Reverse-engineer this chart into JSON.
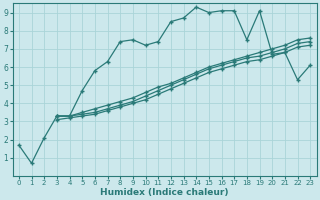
{
  "xlabel": "Humidex (Indice chaleur)",
  "bg_color": "#cce8ec",
  "line_color": "#2a7a78",
  "grid_color": "#aad4d8",
  "xlim": [
    -0.5,
    23.5
  ],
  "ylim": [
    0,
    9.5
  ],
  "xticks": [
    0,
    1,
    2,
    3,
    4,
    5,
    6,
    7,
    8,
    9,
    10,
    11,
    12,
    13,
    14,
    15,
    16,
    17,
    18,
    19,
    20,
    21,
    22,
    23
  ],
  "yticks": [
    1,
    2,
    3,
    4,
    5,
    6,
    7,
    8,
    9
  ],
  "line1_x": [
    0,
    1,
    2,
    3,
    4,
    5,
    6,
    7,
    8,
    9,
    10,
    11,
    12,
    13,
    14,
    15,
    16,
    17,
    18,
    19,
    20,
    21,
    22,
    23
  ],
  "line1_y": [
    1.7,
    0.7,
    2.1,
    3.3,
    3.3,
    4.7,
    5.8,
    6.3,
    7.4,
    7.5,
    7.2,
    7.4,
    8.5,
    8.7,
    9.3,
    9.0,
    9.1,
    9.1,
    7.5,
    9.1,
    6.7,
    6.8,
    5.3,
    6.1
  ],
  "line2_x": [
    3,
    4,
    5,
    6,
    7,
    8,
    9,
    10,
    11,
    12,
    13,
    14,
    15,
    16,
    17,
    18,
    19,
    20,
    21,
    22,
    23
  ],
  "line2_y": [
    3.3,
    3.3,
    3.5,
    3.7,
    3.9,
    4.1,
    4.3,
    4.6,
    4.9,
    5.1,
    5.4,
    5.7,
    6.0,
    6.2,
    6.4,
    6.6,
    6.8,
    7.0,
    7.2,
    7.5,
    7.6
  ],
  "line3_x": [
    3,
    4,
    5,
    6,
    7,
    8,
    9,
    10,
    11,
    12,
    13,
    14,
    15,
    16,
    17,
    18,
    19,
    20,
    21,
    22,
    23
  ],
  "line3_y": [
    3.3,
    3.3,
    3.4,
    3.5,
    3.7,
    3.9,
    4.1,
    4.4,
    4.7,
    5.0,
    5.3,
    5.6,
    5.9,
    6.1,
    6.3,
    6.5,
    6.6,
    6.8,
    7.0,
    7.3,
    7.4
  ],
  "line4_x": [
    3,
    4,
    5,
    6,
    7,
    8,
    9,
    10,
    11,
    12,
    13,
    14,
    15,
    16,
    17,
    18,
    19,
    20,
    21,
    22,
    23
  ],
  "line4_y": [
    3.1,
    3.2,
    3.3,
    3.4,
    3.6,
    3.8,
    4.0,
    4.2,
    4.5,
    4.8,
    5.1,
    5.4,
    5.7,
    5.9,
    6.1,
    6.3,
    6.4,
    6.6,
    6.8,
    7.1,
    7.2
  ]
}
